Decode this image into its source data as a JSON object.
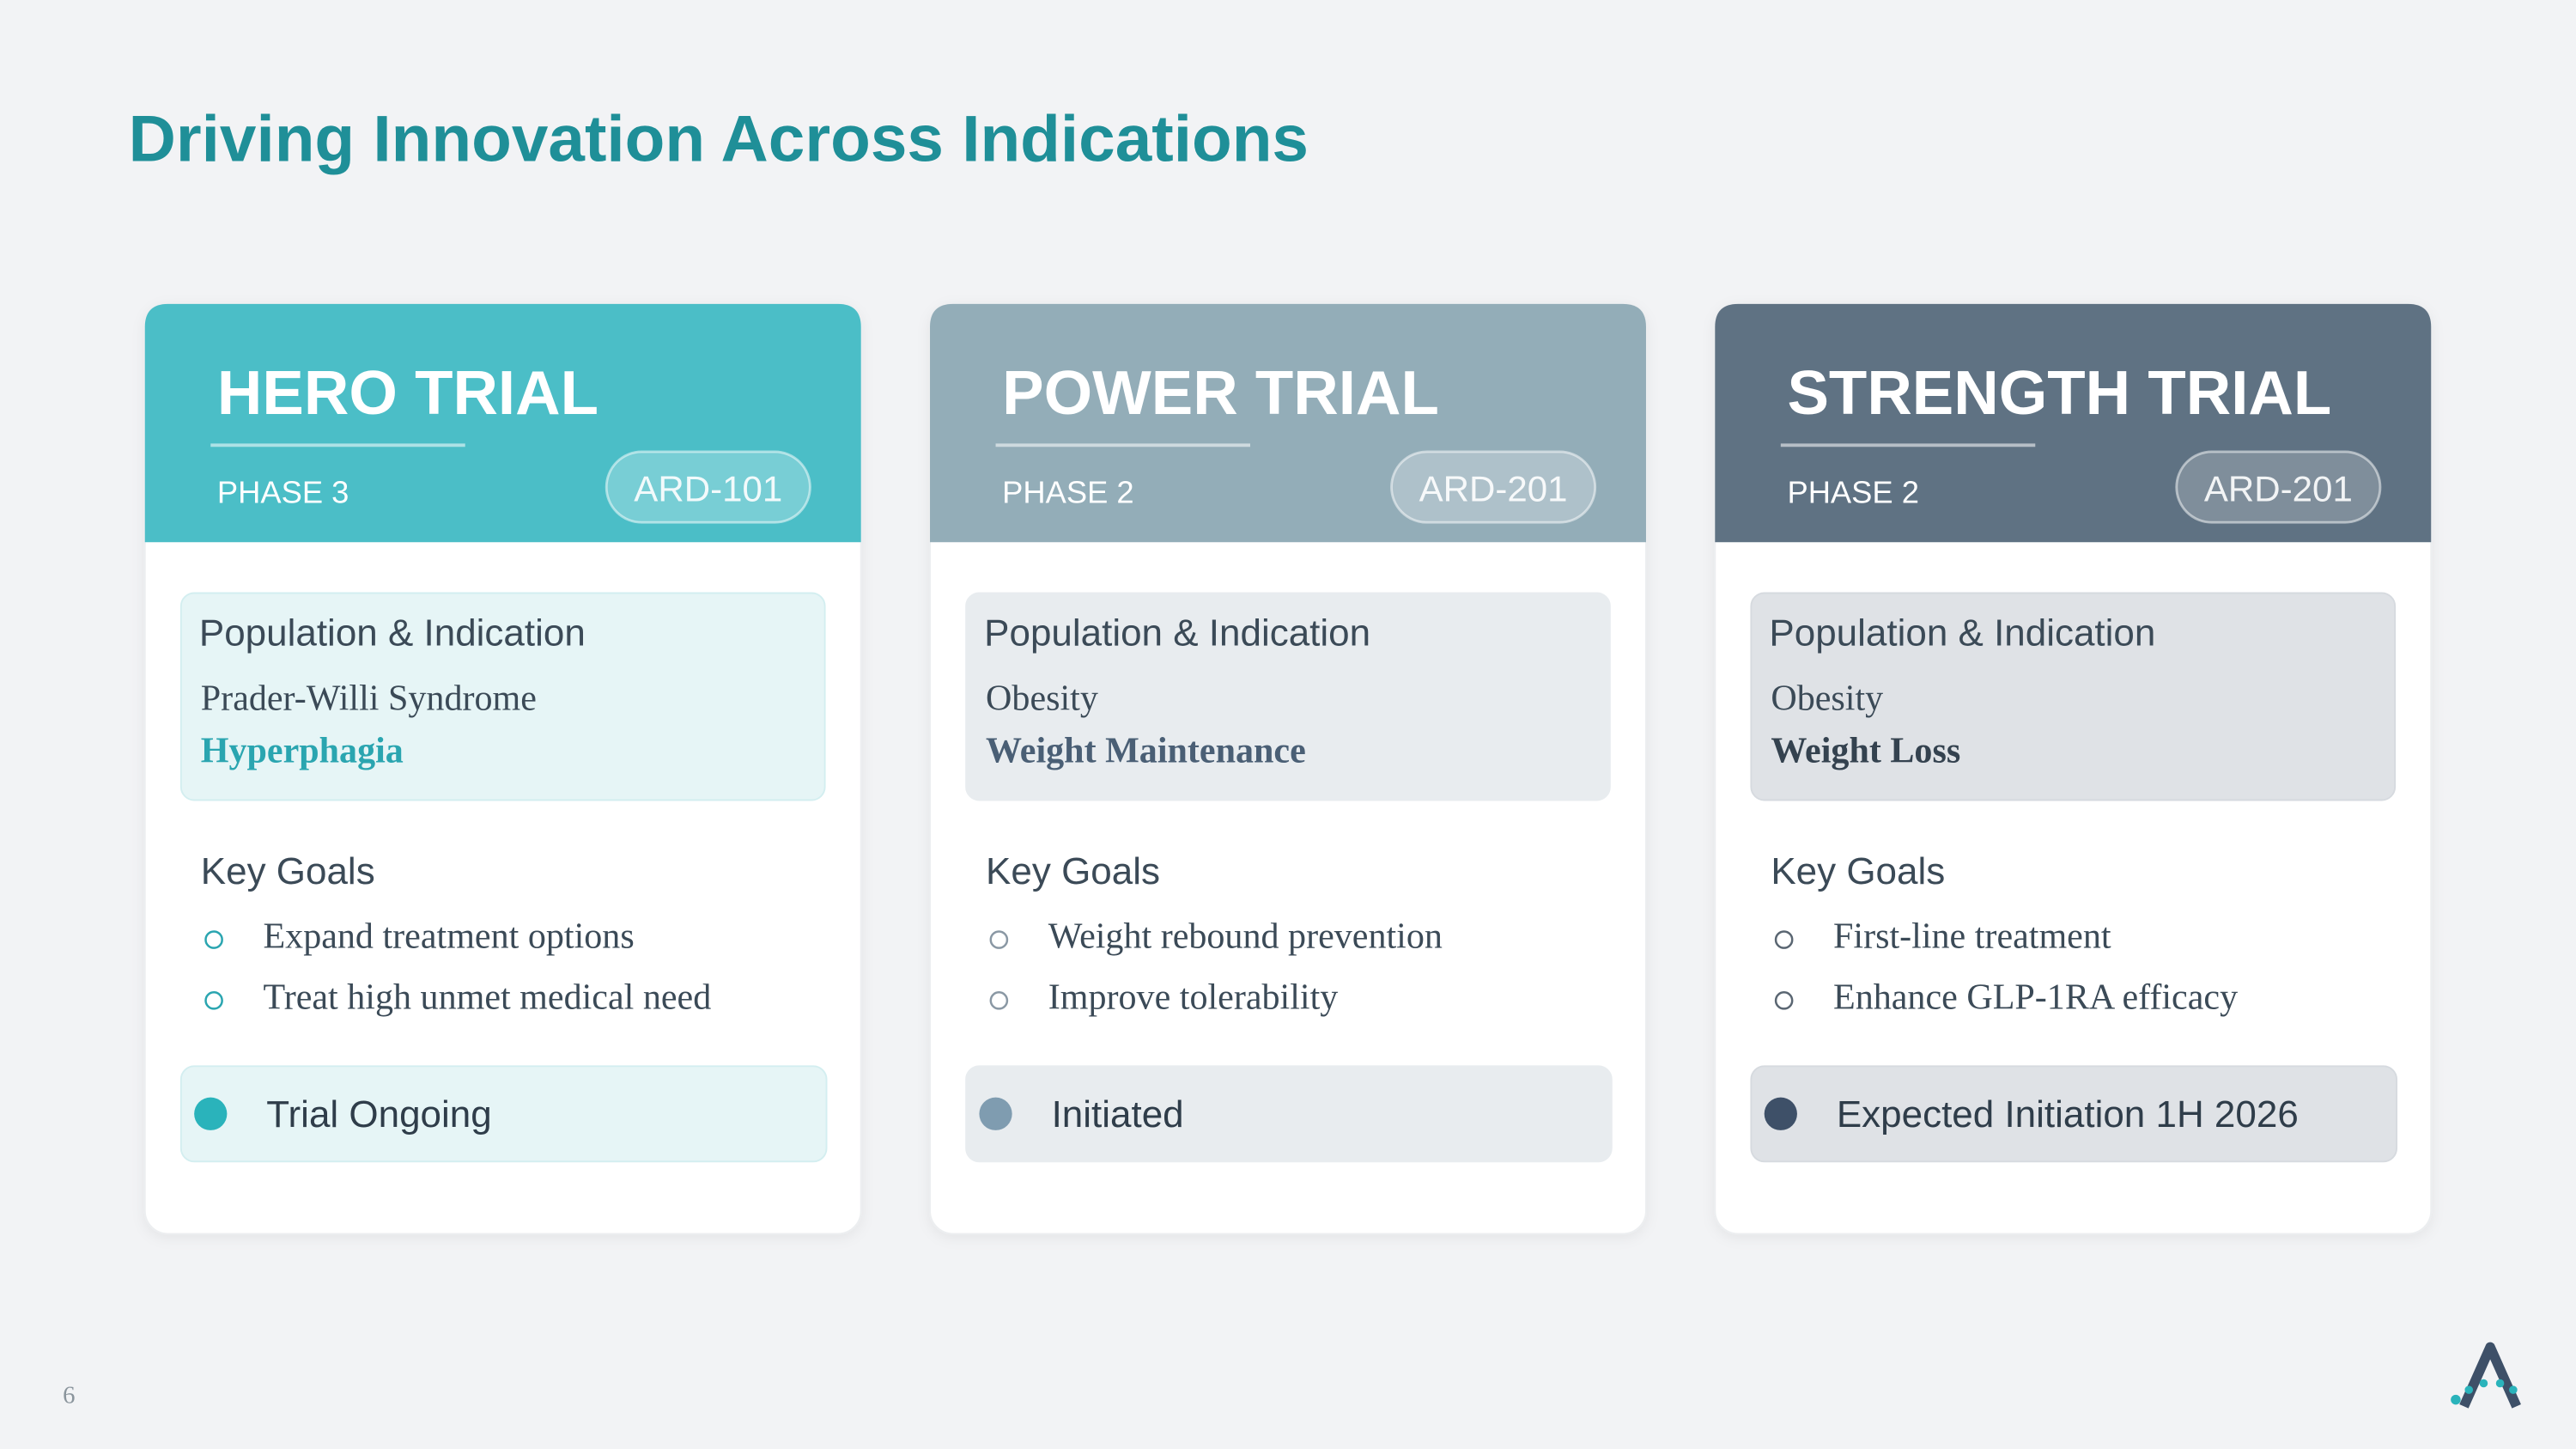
{
  "header": {
    "title": "Driving Innovation Across Indications"
  },
  "trials": [
    {
      "name": "HERO TRIAL",
      "phase": "PHASE 3",
      "code": "ARD-101",
      "population_heading": "Population & Indication",
      "population": "Prader-Willi Syndrome",
      "indication": "Hyperphagia",
      "goals_heading": "Key Goals",
      "goals": [
        "Expand treatment options",
        "Treat high unmet medical need"
      ],
      "status": "Trial Ongoing"
    },
    {
      "name": "POWER TRIAL",
      "phase": "PHASE 2",
      "code": "ARD-201",
      "population_heading": "Population & Indication",
      "population": "Obesity",
      "indication": "Weight Maintenance",
      "goals_heading": "Key Goals",
      "goals": [
        "Weight rebound prevention",
        "Improve tolerability"
      ],
      "status": "Initiated"
    },
    {
      "name": "STRENGTH TRIAL",
      "phase": "PHASE 2",
      "code": "ARD-201",
      "population_heading": "Population & Indication",
      "population": "Obesity",
      "indication": "Weight Loss",
      "goals_heading": "Key Goals",
      "goals": [
        "First-line treatment",
        "Enhance GLP-1RA efficacy"
      ],
      "status": "Expected Initiation 1H 2026"
    }
  ],
  "footer": {
    "page_number": "6"
  }
}
